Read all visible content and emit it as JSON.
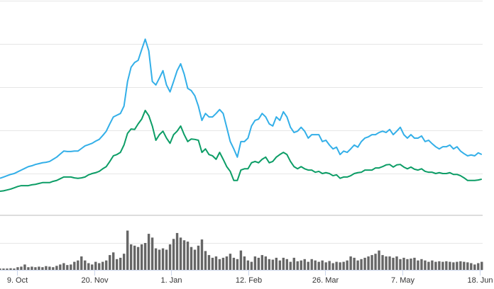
{
  "chart_data": {
    "type": "line",
    "title": "",
    "xlabel": "",
    "ylabel": "",
    "x_unit": "days since 9. Oct",
    "x_start": -9.3,
    "x_step": 1.93,
    "x_ticks": [
      {
        "label": "9. Oct",
        "day": 0
      },
      {
        "label": "20. Nov",
        "day": 42
      },
      {
        "label": "1. Jan",
        "day": 84
      },
      {
        "label": "12. Feb",
        "day": 126
      },
      {
        "label": "26. Mar",
        "day": 168
      },
      {
        "label": "7. May",
        "day": 210
      },
      {
        "label": "18. Jun",
        "day": 252
      }
    ],
    "ylim": [
      0,
      5
    ],
    "y_gridlines": [
      1,
      2,
      3,
      4,
      5
    ],
    "grid": true,
    "legend": "none",
    "colors": {
      "series_blue": "#33afe8",
      "series_green": "#0c9d66",
      "volume": "#666666",
      "grid": "#e6e6e6",
      "separator": "#dddddd",
      "tick": "#ccd6eb"
    },
    "series": [
      {
        "name": "blue",
        "values": [
          0.89,
          0.92,
          0.95,
          0.98,
          1.0,
          1.04,
          1.08,
          1.12,
          1.16,
          1.18,
          1.21,
          1.23,
          1.25,
          1.26,
          1.28,
          1.33,
          1.38,
          1.45,
          1.52,
          1.51,
          1.51,
          1.52,
          1.52,
          1.58,
          1.64,
          1.67,
          1.7,
          1.75,
          1.79,
          1.88,
          1.98,
          2.15,
          2.31,
          2.35,
          2.39,
          2.56,
          3.13,
          3.46,
          3.57,
          3.62,
          3.87,
          4.11,
          3.84,
          3.13,
          3.05,
          3.21,
          3.38,
          3.05,
          2.89,
          3.13,
          3.38,
          3.54,
          3.3,
          2.97,
          2.92,
          2.8,
          2.56,
          2.23,
          2.39,
          2.31,
          2.31,
          2.39,
          2.48,
          2.39,
          2.07,
          1.74,
          1.57,
          1.38,
          1.74,
          1.74,
          1.82,
          2.1,
          2.23,
          2.26,
          2.39,
          2.31,
          2.15,
          2.1,
          2.31,
          2.23,
          2.43,
          2.31,
          2.07,
          1.95,
          1.98,
          2.07,
          1.98,
          1.82,
          1.9,
          1.9,
          1.9,
          1.74,
          1.77,
          1.66,
          1.57,
          1.61,
          1.44,
          1.52,
          1.49,
          1.57,
          1.66,
          1.61,
          1.74,
          1.82,
          1.85,
          1.9,
          1.9,
          1.95,
          1.98,
          1.95,
          2.02,
          1.9,
          1.98,
          2.07,
          1.9,
          1.82,
          1.9,
          1.82,
          1.82,
          1.87,
          1.74,
          1.77,
          1.69,
          1.62,
          1.57,
          1.62,
          1.62,
          1.66,
          1.57,
          1.62,
          1.52,
          1.46,
          1.41,
          1.43,
          1.41,
          1.48,
          1.44
        ]
      },
      {
        "name": "green",
        "values": [
          0.59,
          0.6,
          0.62,
          0.64,
          0.67,
          0.7,
          0.72,
          0.72,
          0.72,
          0.74,
          0.75,
          0.77,
          0.79,
          0.79,
          0.79,
          0.82,
          0.84,
          0.88,
          0.92,
          0.92,
          0.92,
          0.9,
          0.89,
          0.9,
          0.92,
          0.97,
          1.0,
          1.02,
          1.05,
          1.11,
          1.16,
          1.28,
          1.41,
          1.44,
          1.49,
          1.66,
          1.93,
          2.03,
          2.02,
          2.15,
          2.26,
          2.46,
          2.34,
          2.1,
          1.77,
          1.9,
          1.98,
          1.82,
          1.7,
          1.9,
          1.98,
          2.1,
          1.9,
          1.74,
          1.8,
          1.79,
          1.77,
          1.49,
          1.57,
          1.44,
          1.41,
          1.33,
          1.49,
          1.33,
          1.16,
          1.05,
          0.84,
          0.84,
          1.08,
          1.11,
          1.11,
          1.25,
          1.28,
          1.25,
          1.33,
          1.38,
          1.25,
          1.28,
          1.38,
          1.44,
          1.49,
          1.44,
          1.28,
          1.16,
          1.11,
          1.16,
          1.11,
          1.08,
          1.08,
          1.03,
          1.05,
          1.0,
          1.02,
          1.0,
          0.95,
          0.97,
          0.89,
          0.92,
          0.92,
          0.95,
          1.0,
          1.02,
          1.03,
          1.08,
          1.08,
          1.08,
          1.13,
          1.13,
          1.16,
          1.2,
          1.21,
          1.15,
          1.2,
          1.21,
          1.15,
          1.11,
          1.15,
          1.1,
          1.08,
          1.11,
          1.05,
          1.03,
          1.03,
          1.0,
          1.02,
          1.0,
          1.0,
          1.02,
          0.98,
          0.98,
          0.95,
          0.9,
          0.84,
          0.84,
          0.84,
          0.85,
          0.87
        ]
      }
    ],
    "volume": {
      "type": "bar",
      "ylim": [
        0,
        2
      ],
      "y_gridlines": [
        1
      ],
      "values": [
        0.05,
        0.05,
        0.05,
        0.06,
        0.05,
        0.1,
        0.12,
        0.2,
        0.1,
        0.12,
        0.1,
        0.12,
        0.1,
        0.14,
        0.12,
        0.1,
        0.15,
        0.2,
        0.25,
        0.18,
        0.2,
        0.3,
        0.35,
        0.5,
        0.35,
        0.25,
        0.2,
        0.3,
        0.25,
        0.3,
        0.35,
        0.55,
        0.65,
        0.4,
        0.45,
        0.6,
        1.46,
        0.95,
        0.9,
        0.85,
        0.95,
        1.0,
        1.34,
        1.2,
        0.8,
        0.75,
        0.8,
        0.75,
        0.95,
        1.15,
        1.37,
        1.2,
        1.1,
        1.05,
        0.85,
        0.75,
        0.9,
        1.13,
        0.7,
        0.55,
        0.45,
        0.5,
        0.4,
        0.45,
        0.5,
        0.6,
        0.45,
        0.4,
        0.72,
        0.5,
        0.35,
        0.3,
        0.5,
        0.45,
        0.55,
        0.5,
        0.4,
        0.38,
        0.45,
        0.35,
        0.45,
        0.4,
        0.3,
        0.45,
        0.32,
        0.35,
        0.4,
        0.3,
        0.4,
        0.35,
        0.3,
        0.35,
        0.28,
        0.33,
        0.25,
        0.3,
        0.28,
        0.3,
        0.35,
        0.5,
        0.45,
        0.35,
        0.4,
        0.45,
        0.5,
        0.55,
        0.6,
        0.72,
        0.55,
        0.5,
        0.5,
        0.45,
        0.5,
        0.4,
        0.45,
        0.4,
        0.42,
        0.45,
        0.35,
        0.4,
        0.35,
        0.3,
        0.35,
        0.3,
        0.32,
        0.3,
        0.32,
        0.3,
        0.28,
        0.3,
        0.32,
        0.3,
        0.28,
        0.25,
        0.2,
        0.25,
        0.3
      ]
    }
  }
}
